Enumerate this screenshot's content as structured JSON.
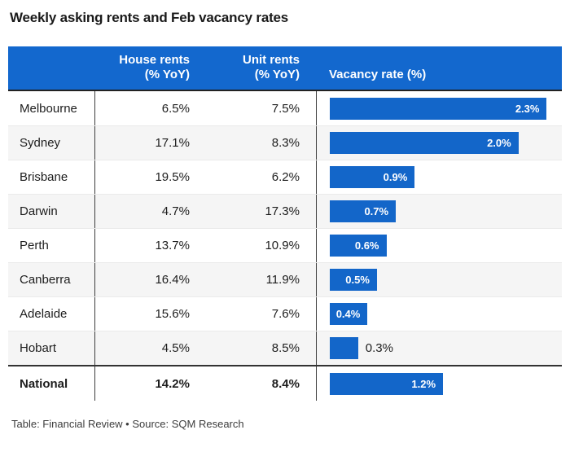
{
  "title": "Weekly asking rents and Feb vacancy rates",
  "header": {
    "house_line1": "House rents",
    "house_line2": "(% YoY)",
    "unit_line1": "Unit rents",
    "unit_line2": "(% YoY)",
    "vacancy": "Vacancy rate (%)"
  },
  "rows": [
    {
      "city": "Melbourne",
      "house": "6.5%",
      "unit": "7.5%",
      "vacancy": 2.3,
      "vacancy_label": "2.3%"
    },
    {
      "city": "Sydney",
      "house": "17.1%",
      "unit": "8.3%",
      "vacancy": 2.0,
      "vacancy_label": "2.0%"
    },
    {
      "city": "Brisbane",
      "house": "19.5%",
      "unit": "6.2%",
      "vacancy": 0.9,
      "vacancy_label": "0.9%"
    },
    {
      "city": "Darwin",
      "house": "4.7%",
      "unit": "17.3%",
      "vacancy": 0.7,
      "vacancy_label": "0.7%"
    },
    {
      "city": "Perth",
      "house": "13.7%",
      "unit": "10.9%",
      "vacancy": 0.6,
      "vacancy_label": "0.6%"
    },
    {
      "city": "Canberra",
      "house": "16.4%",
      "unit": "11.9%",
      "vacancy": 0.5,
      "vacancy_label": "0.5%"
    },
    {
      "city": "Adelaide",
      "house": "15.6%",
      "unit": "7.6%",
      "vacancy": 0.4,
      "vacancy_label": "0.4%"
    },
    {
      "city": "Hobart",
      "house": "4.5%",
      "unit": "8.5%",
      "vacancy": 0.3,
      "vacancy_label": "0.3%"
    },
    {
      "city": "National",
      "house": "14.2%",
      "unit": "8.4%",
      "vacancy": 1.2,
      "vacancy_label": "1.2%"
    }
  ],
  "footer": "Table: Financial Review • Source: SQM Research",
  "colors": {
    "header_bg": "#1368ce",
    "bar": "#1366c9",
    "divider": "#3d3d3d",
    "alt_row_bg": "#f5f5f5"
  },
  "chart_data": {
    "type": "bar",
    "orientation": "horizontal",
    "title": "Weekly asking rents and Feb vacancy rates",
    "categories": [
      "Melbourne",
      "Sydney",
      "Brisbane",
      "Darwin",
      "Perth",
      "Canberra",
      "Adelaide",
      "Hobart",
      "National"
    ],
    "series": [
      {
        "name": "House rents (% YoY)",
        "values": [
          6.5,
          17.1,
          19.5,
          4.7,
          13.7,
          16.4,
          15.6,
          4.5,
          14.2
        ]
      },
      {
        "name": "Unit rents (% YoY)",
        "values": [
          7.5,
          8.3,
          6.2,
          17.3,
          10.9,
          11.9,
          7.6,
          8.5,
          8.4
        ]
      },
      {
        "name": "Vacancy rate (%)",
        "values": [
          2.3,
          2.0,
          0.9,
          0.7,
          0.6,
          0.5,
          0.4,
          0.3,
          1.2
        ]
      }
    ],
    "xlabel": "Vacancy rate (%)",
    "ylabel": "",
    "xlim": [
      0,
      2.46
    ],
    "grid": false,
    "legend_position": "none",
    "notes": "House and unit rents shown as table columns; vacancy rate shown as data bars with value labels"
  }
}
